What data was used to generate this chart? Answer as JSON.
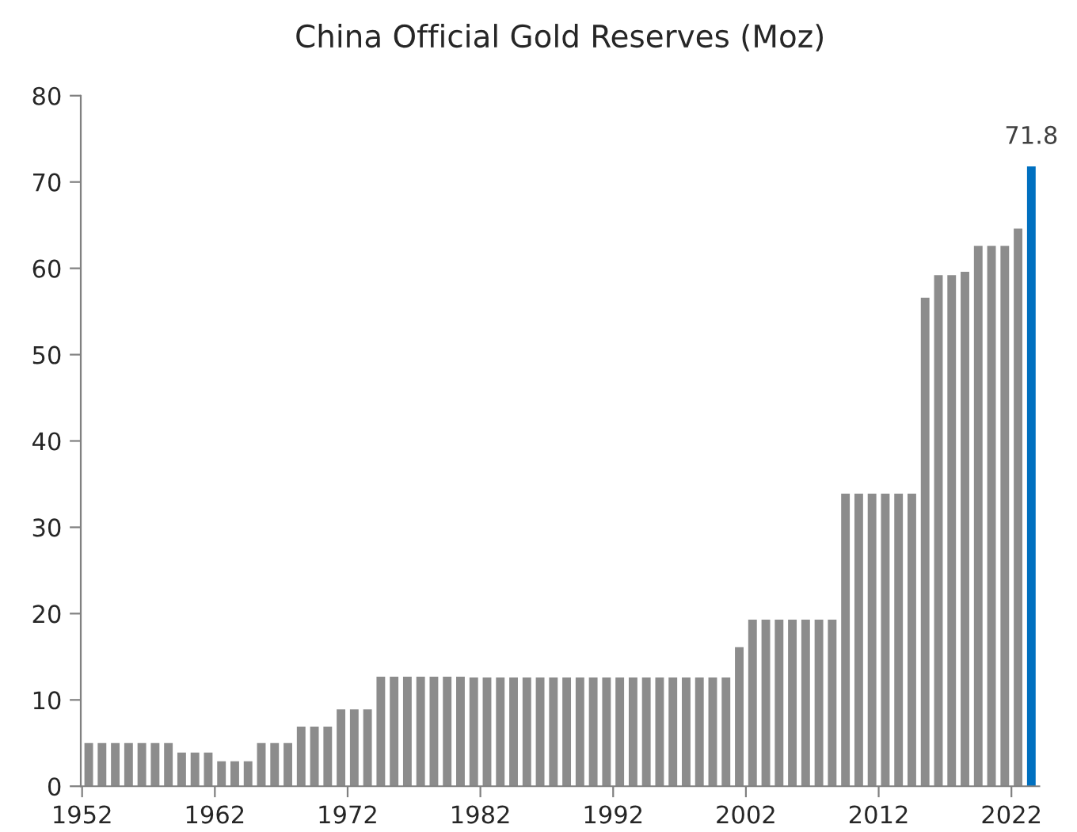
{
  "chart_data": {
    "type": "bar",
    "title": "China Official Gold Reserves (Moz)",
    "categories": [
      "1952",
      null,
      null,
      null,
      null,
      null,
      null,
      null,
      null,
      null,
      "1962",
      null,
      null,
      null,
      null,
      null,
      null,
      null,
      null,
      null,
      "1972",
      null,
      null,
      null,
      null,
      null,
      null,
      null,
      null,
      null,
      "1982",
      null,
      null,
      null,
      null,
      null,
      null,
      null,
      null,
      null,
      "1992",
      null,
      null,
      null,
      null,
      null,
      null,
      null,
      null,
      null,
      "2002",
      null,
      null,
      null,
      null,
      null,
      null,
      null,
      null,
      null,
      "2012",
      null,
      null,
      null,
      null,
      null,
      null,
      null,
      null,
      null,
      "2022",
      null
    ],
    "values": [
      5,
      5,
      5,
      5,
      5,
      5,
      5,
      3.9,
      3.9,
      3.9,
      2.9,
      2.9,
      2.9,
      5,
      5,
      5,
      6.9,
      6.9,
      6.9,
      8.9,
      8.9,
      8.9,
      12.7,
      12.7,
      12.7,
      12.7,
      12.7,
      12.7,
      12.7,
      12.6,
      12.6,
      12.6,
      12.6,
      12.6,
      12.6,
      12.6,
      12.6,
      12.6,
      12.6,
      12.6,
      12.6,
      12.6,
      12.6,
      12.6,
      12.6,
      12.6,
      12.6,
      12.6,
      12.6,
      16.1,
      19.3,
      19.3,
      19.3,
      19.3,
      19.3,
      19.3,
      19.3,
      33.9,
      33.9,
      33.9,
      33.9,
      33.9,
      33.9,
      56.6,
      59.2,
      59.2,
      59.6,
      62.6,
      62.6,
      62.6,
      64.6,
      71.8
    ],
    "colors": [
      "#8c8c8c",
      "#8c8c8c",
      "#8c8c8c",
      "#8c8c8c",
      "#8c8c8c",
      "#8c8c8c",
      "#8c8c8c",
      "#8c8c8c",
      "#8c8c8c",
      "#8c8c8c",
      "#8c8c8c",
      "#8c8c8c",
      "#8c8c8c",
      "#8c8c8c",
      "#8c8c8c",
      "#8c8c8c",
      "#8c8c8c",
      "#8c8c8c",
      "#8c8c8c",
      "#8c8c8c",
      "#8c8c8c",
      "#8c8c8c",
      "#8c8c8c",
      "#8c8c8c",
      "#8c8c8c",
      "#8c8c8c",
      "#8c8c8c",
      "#8c8c8c",
      "#8c8c8c",
      "#8c8c8c",
      "#8c8c8c",
      "#8c8c8c",
      "#8c8c8c",
      "#8c8c8c",
      "#8c8c8c",
      "#8c8c8c",
      "#8c8c8c",
      "#8c8c8c",
      "#8c8c8c",
      "#8c8c8c",
      "#8c8c8c",
      "#8c8c8c",
      "#8c8c8c",
      "#8c8c8c",
      "#8c8c8c",
      "#8c8c8c",
      "#8c8c8c",
      "#8c8c8c",
      "#8c8c8c",
      "#8c8c8c",
      "#8c8c8c",
      "#8c8c8c",
      "#8c8c8c",
      "#8c8c8c",
      "#8c8c8c",
      "#8c8c8c",
      "#8c8c8c",
      "#8c8c8c",
      "#8c8c8c",
      "#8c8c8c",
      "#8c8c8c",
      "#8c8c8c",
      "#8c8c8c",
      "#8c8c8c",
      "#8c8c8c",
      "#8c8c8c",
      "#8c8c8c",
      "#8c8c8c",
      "#8c8c8c",
      "#8c8c8c",
      "#8c8c8c",
      "#0070c0"
    ],
    "value_labels": [
      null,
      null,
      null,
      null,
      null,
      null,
      null,
      null,
      null,
      null,
      null,
      null,
      null,
      null,
      null,
      null,
      null,
      null,
      null,
      null,
      null,
      null,
      null,
      null,
      null,
      null,
      null,
      null,
      null,
      null,
      null,
      null,
      null,
      null,
      null,
      null,
      null,
      null,
      null,
      null,
      null,
      null,
      null,
      null,
      null,
      null,
      null,
      null,
      null,
      null,
      null,
      null,
      null,
      null,
      null,
      null,
      null,
      null,
      null,
      null,
      null,
      null,
      null,
      null,
      null,
      null,
      null,
      null,
      null,
      null,
      null,
      "71.8"
    ],
    "ylim": [
      0,
      80
    ],
    "yticks": [
      0,
      10,
      20,
      30,
      40,
      50,
      60,
      70,
      80
    ],
    "grid": false,
    "legend": false
  }
}
